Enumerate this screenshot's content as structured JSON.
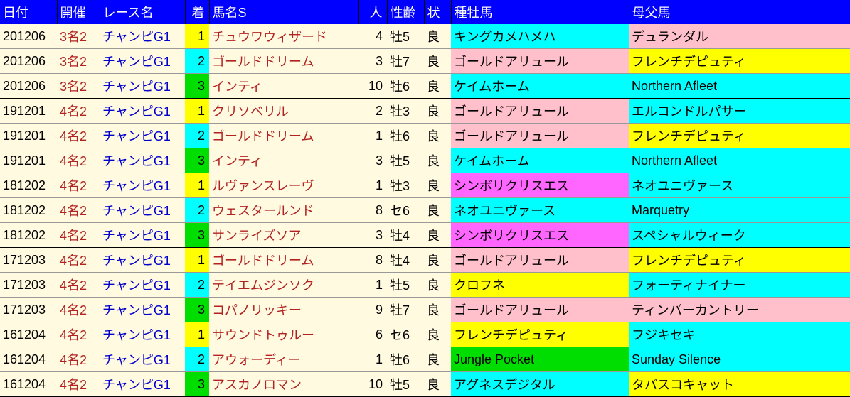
{
  "colors": {
    "header_bg": "#0000ff",
    "header_fg": "#ffffff",
    "cream": "#fffae0",
    "date_fg": "#000000",
    "venue_fg": "#b22222",
    "race_fg": "#0000cc",
    "horse_fg": "#b22222",
    "pop_fg": "#000000",
    "sex_fg": "#000000",
    "track_fg": "#000000",
    "yellow": "#ffff00",
    "cyan": "#00ffff",
    "green": "#00dd00",
    "pink": "#ffc0cb",
    "magenta": "#ff66ff",
    "black": "#000000"
  },
  "columns": [
    "日付",
    "開催",
    "レース名",
    "着",
    "馬名S",
    "人",
    "性齢",
    "状",
    "種牡馬",
    "母父馬"
  ],
  "col_classes": [
    "col-date",
    "col-venue",
    "col-race",
    "col-pos",
    "col-horse",
    "col-pop",
    "col-sex",
    "col-track",
    "col-sire",
    "col-damsire"
  ],
  "rows": [
    {
      "date": "201206",
      "venue": "3名2",
      "race": "チャンピG1",
      "pos": "1",
      "pos_bg": "yellow",
      "horse": "チュウワウィザード",
      "pop": "4",
      "sex": "牡5",
      "track": "良",
      "sire": "キングカメハメハ",
      "sire_bg": "cyan",
      "damsire": "デュランダル",
      "damsire_bg": "pink",
      "group_end": false
    },
    {
      "date": "201206",
      "venue": "3名2",
      "race": "チャンピG1",
      "pos": "2",
      "pos_bg": "cyan",
      "horse": "ゴールドドリーム",
      "pop": "3",
      "sex": "牡7",
      "track": "良",
      "sire": "ゴールドアリュール",
      "sire_bg": "pink",
      "damsire": "フレンチデピュティ",
      "damsire_bg": "yellow",
      "group_end": false
    },
    {
      "date": "201206",
      "venue": "3名2",
      "race": "チャンピG1",
      "pos": "3",
      "pos_bg": "green",
      "horse": "インティ",
      "pop": "10",
      "sex": "牡6",
      "track": "良",
      "sire": "ケイムホーム",
      "sire_bg": "cyan",
      "damsire": "Northern Afleet",
      "damsire_bg": "cyan",
      "group_end": true
    },
    {
      "date": "191201",
      "venue": "4名2",
      "race": "チャンピG1",
      "pos": "1",
      "pos_bg": "yellow",
      "horse": "クリソベリル",
      "pop": "2",
      "sex": "牡3",
      "track": "良",
      "sire": "ゴールドアリュール",
      "sire_bg": "pink",
      "damsire": "エルコンドルパサー",
      "damsire_bg": "cyan",
      "group_end": false
    },
    {
      "date": "191201",
      "venue": "4名2",
      "race": "チャンピG1",
      "pos": "2",
      "pos_bg": "cyan",
      "horse": "ゴールドドリーム",
      "pop": "1",
      "sex": "牡6",
      "track": "良",
      "sire": "ゴールドアリュール",
      "sire_bg": "pink",
      "damsire": "フレンチデピュティ",
      "damsire_bg": "yellow",
      "group_end": false
    },
    {
      "date": "191201",
      "venue": "4名2",
      "race": "チャンピG1",
      "pos": "3",
      "pos_bg": "green",
      "horse": "インティ",
      "pop": "3",
      "sex": "牡5",
      "track": "良",
      "sire": "ケイムホーム",
      "sire_bg": "cyan",
      "damsire": "Northern Afleet",
      "damsire_bg": "cyan",
      "group_end": true
    },
    {
      "date": "181202",
      "venue": "4名2",
      "race": "チャンピG1",
      "pos": "1",
      "pos_bg": "yellow",
      "horse": "ルヴァンスレーヴ",
      "pop": "1",
      "sex": "牡3",
      "track": "良",
      "sire": "シンボリクリスエス",
      "sire_bg": "magenta",
      "damsire": "ネオユニヴァース",
      "damsire_bg": "cyan",
      "group_end": false
    },
    {
      "date": "181202",
      "venue": "4名2",
      "race": "チャンピG1",
      "pos": "2",
      "pos_bg": "cyan",
      "horse": "ウェスタールンド",
      "pop": "8",
      "sex": "セ6",
      "track": "良",
      "sire": "ネオユニヴァース",
      "sire_bg": "cyan",
      "damsire": "Marquetry",
      "damsire_bg": "cyan",
      "group_end": false
    },
    {
      "date": "181202",
      "venue": "4名2",
      "race": "チャンピG1",
      "pos": "3",
      "pos_bg": "green",
      "horse": "サンライズソア",
      "pop": "3",
      "sex": "牡4",
      "track": "良",
      "sire": "シンボリクリスエス",
      "sire_bg": "magenta",
      "damsire": "スペシャルウィーク",
      "damsire_bg": "cyan",
      "group_end": true
    },
    {
      "date": "171203",
      "venue": "4名2",
      "race": "チャンピG1",
      "pos": "1",
      "pos_bg": "yellow",
      "horse": "ゴールドドリーム",
      "pop": "8",
      "sex": "牡4",
      "track": "良",
      "sire": "ゴールドアリュール",
      "sire_bg": "pink",
      "damsire": "フレンチデピュティ",
      "damsire_bg": "yellow",
      "group_end": false
    },
    {
      "date": "171203",
      "venue": "4名2",
      "race": "チャンピG1",
      "pos": "2",
      "pos_bg": "cyan",
      "horse": "テイエムジンソク",
      "pop": "1",
      "sex": "牡5",
      "track": "良",
      "sire": "クロフネ",
      "sire_bg": "yellow",
      "damsire": "フォーティナイナー",
      "damsire_bg": "cyan",
      "group_end": false
    },
    {
      "date": "171203",
      "venue": "4名2",
      "race": "チャンピG1",
      "pos": "3",
      "pos_bg": "green",
      "horse": "コパノリッキー",
      "pop": "9",
      "sex": "牡7",
      "track": "良",
      "sire": "ゴールドアリュール",
      "sire_bg": "pink",
      "damsire": "ティンバーカントリー",
      "damsire_bg": "pink",
      "group_end": true
    },
    {
      "date": "161204",
      "venue": "4名2",
      "race": "チャンピG1",
      "pos": "1",
      "pos_bg": "yellow",
      "horse": "サウンドトゥルー",
      "pop": "6",
      "sex": "セ6",
      "track": "良",
      "sire": "フレンチデピュティ",
      "sire_bg": "yellow",
      "damsire": "フジキセキ",
      "damsire_bg": "cyan",
      "group_end": false
    },
    {
      "date": "161204",
      "venue": "4名2",
      "race": "チャンピG1",
      "pos": "2",
      "pos_bg": "cyan",
      "horse": "アウォーディー",
      "pop": "1",
      "sex": "牡6",
      "track": "良",
      "sire": "Jungle Pocket",
      "sire_bg": "green",
      "damsire": "Sunday Silence",
      "damsire_bg": "cyan",
      "group_end": false
    },
    {
      "date": "161204",
      "venue": "4名2",
      "race": "チャンピG1",
      "pos": "3",
      "pos_bg": "green",
      "horse": "アスカノロマン",
      "pop": "10",
      "sex": "牡5",
      "track": "良",
      "sire": "アグネスデジタル",
      "sire_bg": "cyan",
      "damsire": "タバスコキャット",
      "damsire_bg": "yellow",
      "group_end": false
    }
  ]
}
